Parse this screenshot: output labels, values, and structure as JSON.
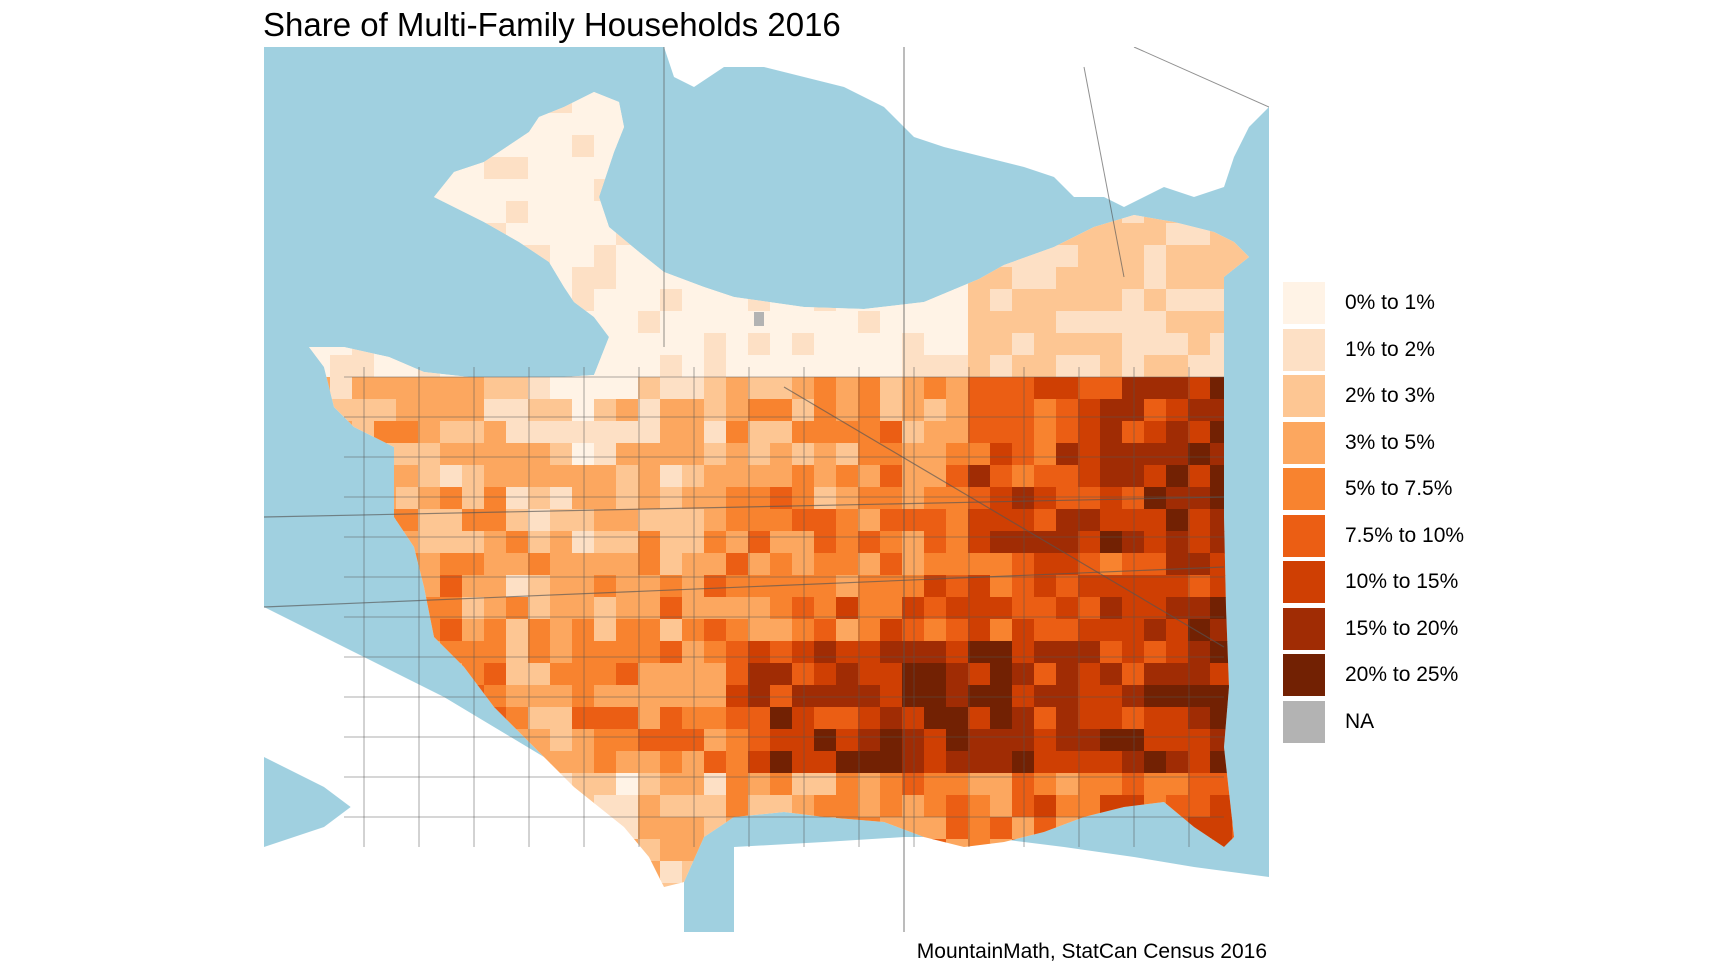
{
  "title": "Share of Multi-Family Households 2016",
  "caption": "MountainMath, StatCan Census 2016",
  "colors": {
    "water": "#a0d0e0",
    "road": "#555555",
    "background": "#ffffff"
  },
  "legend": {
    "items": [
      {
        "label": "0% to 1%",
        "color": "#fff3e6"
      },
      {
        "label": "1% to 2%",
        "color": "#fde0c5"
      },
      {
        "label": "2% to 3%",
        "color": "#fdc693"
      },
      {
        "label": "3% to 5%",
        "color": "#fca75f"
      },
      {
        "label": "5% to 7.5%",
        "color": "#f8832f"
      },
      {
        "label": "7.5% to 10%",
        "color": "#eb5e14"
      },
      {
        "label": "10% to 15%",
        "color": "#cf3f03"
      },
      {
        "label": "15% to 20%",
        "color": "#a02c04"
      },
      {
        "label": "20% to 25%",
        "color": "#722103"
      },
      {
        "label": "NA",
        "color": "#b3b3b3"
      }
    ]
  }
}
